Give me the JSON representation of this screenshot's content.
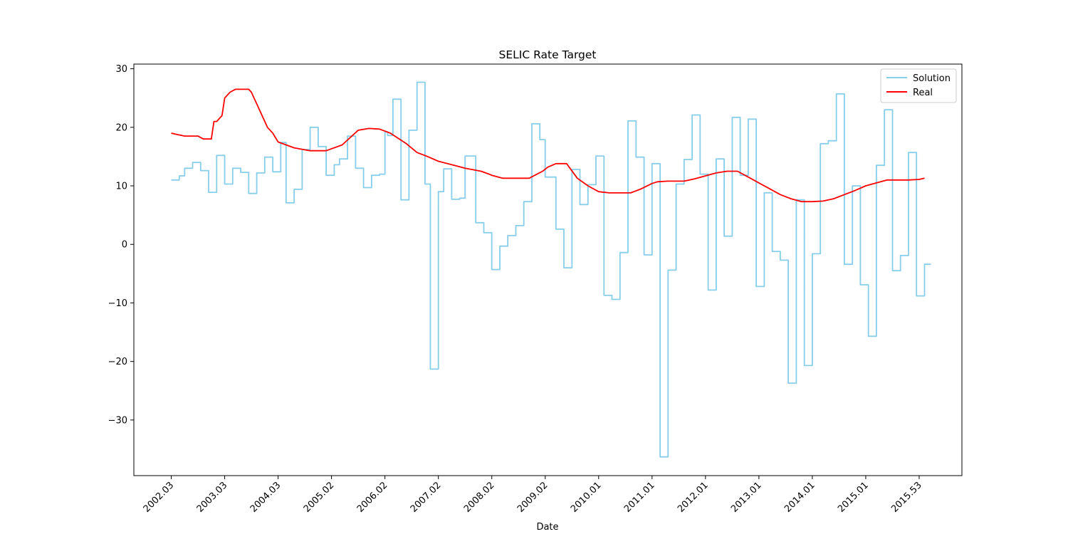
{
  "chart_data": {
    "type": "line",
    "title": "SELIC Rate Target",
    "xlabel": "Date",
    "ylabel": "",
    "grid": false,
    "legend_placement": "top-right",
    "x_ticks": [
      "2002.03",
      "2003.03",
      "2004.03",
      "2005.02",
      "2006.02",
      "2007.02",
      "2008.02",
      "2009.02",
      "2010.01",
      "2011.01",
      "2012.01",
      "2013.01",
      "2014.01",
      "2015.01",
      "2015.53"
    ],
    "x_range": [
      -0.7,
      14.8
    ],
    "ylim": [
      -39.5,
      30.8
    ],
    "y_ticks": [
      30,
      20,
      10,
      0,
      -10,
      -20,
      -30
    ],
    "y_tick_labels": [
      "30",
      "20",
      "10",
      "0",
      "−10",
      "−20",
      "−30"
    ],
    "series": [
      {
        "name": "Solution",
        "color": "#87ceeb",
        "step": true,
        "x": [
          0.0,
          0.15,
          0.25,
          0.4,
          0.55,
          0.7,
          0.85,
          1.0,
          1.15,
          1.3,
          1.45,
          1.6,
          1.75,
          1.9,
          2.05,
          2.15,
          2.3,
          2.45,
          2.6,
          2.75,
          2.9,
          3.05,
          3.15,
          3.3,
          3.45,
          3.6,
          3.75,
          3.9,
          4.0,
          4.05,
          4.15,
          4.3,
          4.45,
          4.6,
          4.75,
          4.85,
          5.0,
          5.1,
          5.25,
          5.4,
          5.5,
          5.7,
          5.85,
          6.0,
          6.15,
          6.3,
          6.45,
          6.6,
          6.75,
          6.9,
          7.0,
          7.05,
          7.2,
          7.35,
          7.5,
          7.65,
          7.8,
          7.95,
          8.1,
          8.25,
          8.4,
          8.55,
          8.7,
          8.85,
          9.0,
          9.15,
          9.3,
          9.45,
          9.6,
          9.75,
          9.9,
          10.05,
          10.2,
          10.35,
          10.5,
          10.65,
          10.8,
          10.95,
          11.1,
          11.25,
          11.4,
          11.55,
          11.7,
          11.85,
          12.0,
          12.15,
          12.3,
          12.45,
          12.6,
          12.75,
          12.9,
          13.05,
          13.2,
          13.35,
          13.5,
          13.65,
          13.8,
          13.95,
          14.1
        ],
        "values": [
          11.0,
          11.7,
          13.0,
          14.0,
          12.6,
          8.9,
          15.2,
          10.3,
          13.0,
          12.3,
          8.7,
          12.2,
          14.9,
          12.4,
          17.4,
          7.1,
          9.4,
          16.2,
          20.0,
          16.7,
          11.8,
          13.6,
          14.6,
          18.5,
          13.0,
          9.7,
          11.8,
          12.0,
          19.2,
          18.6,
          24.8,
          7.6,
          19.5,
          27.7,
          10.3,
          -21.3,
          9.0,
          12.9,
          7.7,
          7.9,
          15.1,
          3.7,
          2.0,
          -4.3,
          -0.3,
          1.5,
          3.2,
          7.3,
          20.6,
          17.9,
          11.5,
          11.5,
          2.6,
          -4.0,
          12.8,
          6.8,
          10.2,
          15.1,
          -8.7,
          -9.4,
          -1.4,
          21.1,
          14.9,
          -1.8,
          13.8,
          -36.3,
          -4.4,
          10.3,
          14.5,
          22.1,
          12.0,
          -7.8,
          14.6,
          1.4,
          21.7,
          11.8,
          21.4,
          -7.2,
          8.8,
          -1.2,
          -2.7,
          -23.7,
          7.6,
          -20.7,
          -1.6,
          17.2,
          17.7,
          25.7,
          -3.4,
          10.0,
          -6.9,
          -15.7,
          13.5,
          23.0,
          -4.5,
          -1.9,
          15.7,
          -8.8,
          -3.4
        ]
      },
      {
        "name": "Real",
        "color": "#ff0000",
        "step": false,
        "x": [
          0.0,
          0.1,
          0.25,
          0.5,
          0.6,
          0.65,
          0.75,
          0.8,
          0.85,
          0.95,
          1.0,
          1.05,
          1.1,
          1.2,
          1.3,
          1.45,
          1.5,
          1.55,
          1.6,
          1.7,
          1.8,
          1.9,
          2.0,
          2.3,
          2.6,
          2.9,
          3.2,
          3.5,
          3.7,
          3.9,
          4.1,
          4.4,
          4.6,
          4.8,
          5.0,
          5.3,
          5.5,
          5.8,
          5.95,
          6.0,
          6.2,
          6.5,
          6.7,
          6.95,
          7.05,
          7.2,
          7.4,
          7.6,
          7.8,
          8.0,
          8.2,
          8.4,
          8.6,
          8.8,
          9.0,
          9.1,
          9.3,
          9.6,
          9.8,
          10.0,
          10.2,
          10.4,
          10.6,
          10.8,
          11.0,
          11.2,
          11.4,
          11.6,
          11.8,
          12.0,
          12.2,
          12.4,
          12.6,
          12.8,
          13.0,
          13.2,
          13.4,
          13.6,
          13.8,
          14.0,
          14.1
        ],
        "values": [
          19.0,
          18.8,
          18.5,
          18.5,
          18.0,
          18.0,
          18.0,
          21.0,
          21.0,
          22.0,
          25.0,
          25.5,
          26.0,
          26.5,
          26.5,
          26.5,
          26.0,
          25.0,
          24.0,
          22.0,
          20.0,
          19.0,
          17.5,
          16.5,
          16.0,
          16.0,
          17.0,
          19.5,
          19.8,
          19.7,
          19.0,
          17.2,
          15.7,
          15.0,
          14.2,
          13.5,
          13.0,
          12.5,
          12.0,
          11.8,
          11.3,
          11.3,
          11.3,
          12.5,
          13.2,
          13.8,
          13.8,
          11.3,
          10.0,
          9.0,
          8.8,
          8.8,
          8.8,
          9.5,
          10.4,
          10.7,
          10.8,
          10.8,
          11.2,
          11.7,
          12.2,
          12.5,
          12.5,
          11.5,
          10.5,
          9.5,
          8.5,
          7.8,
          7.3,
          7.3,
          7.4,
          7.8,
          8.5,
          9.2,
          10.0,
          10.5,
          11.0,
          11.0,
          11.0,
          11.1,
          11.3
        ]
      }
    ]
  }
}
